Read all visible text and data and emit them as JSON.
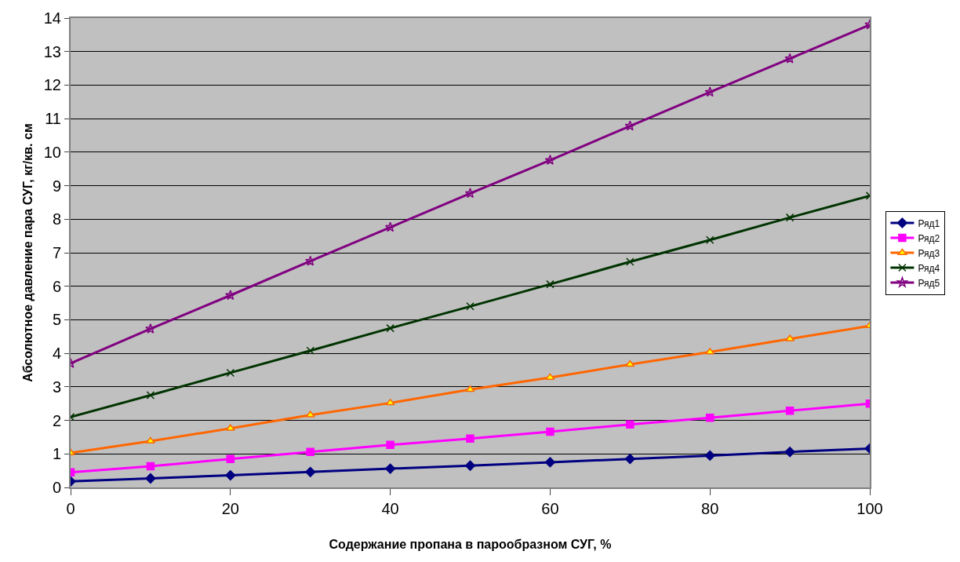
{
  "chart_data": {
    "type": "line",
    "xlabel": "Содержание пропана в парообразном СУГ, %",
    "ylabel": "Абсолютное давление пара СУГ, кг/кв. см",
    "x": [
      0,
      10,
      20,
      30,
      40,
      50,
      60,
      70,
      80,
      90,
      100
    ],
    "xlim": [
      0,
      100
    ],
    "xticks": [
      0,
      20,
      40,
      60,
      80,
      100
    ],
    "ylim": [
      0,
      14
    ],
    "yticks": [
      0,
      1,
      2,
      3,
      4,
      5,
      6,
      7,
      8,
      9,
      10,
      11,
      12,
      13,
      14
    ],
    "grid": "y",
    "legend": "right",
    "line_style": "solid",
    "series": [
      {
        "name": "Ряд1",
        "color": "#000080",
        "marker": "diamond",
        "values": [
          0.18,
          0.27,
          0.36,
          0.46,
          0.56,
          0.65,
          0.75,
          0.85,
          0.95,
          1.06,
          1.16
        ]
      },
      {
        "name": "Ряд2",
        "color": "#ff00ff",
        "marker": "square",
        "values": [
          0.45,
          0.63,
          0.85,
          1.06,
          1.27,
          1.46,
          1.66,
          1.88,
          2.08,
          2.29,
          2.5
        ]
      },
      {
        "name": "Ряд3",
        "color": "#ff6600",
        "marker": "triangle",
        "values": [
          1.03,
          1.38,
          1.76,
          2.16,
          2.52,
          2.92,
          3.28,
          3.67,
          4.04,
          4.43,
          4.82
        ]
      },
      {
        "name": "Ряд4",
        "color": "#003300",
        "marker": "cross",
        "values": [
          2.1,
          2.75,
          3.42,
          4.08,
          4.75,
          5.4,
          6.06,
          6.73,
          7.38,
          8.05,
          8.7
        ]
      },
      {
        "name": "Ряд5",
        "color": "#800080",
        "marker": "star",
        "values": [
          3.7,
          4.73,
          5.73,
          6.75,
          7.76,
          8.77,
          9.76,
          10.78,
          11.79,
          12.79,
          13.8
        ]
      }
    ]
  }
}
